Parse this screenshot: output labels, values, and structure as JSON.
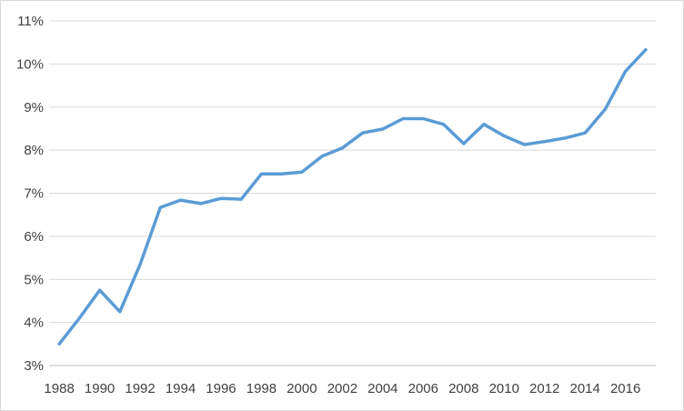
{
  "chart_data": {
    "type": "line",
    "x": [
      1988,
      1989,
      1990,
      1991,
      1992,
      1993,
      1994,
      1995,
      1996,
      1997,
      1998,
      1999,
      2000,
      2001,
      2002,
      2003,
      2004,
      2005,
      2006,
      2007,
      2008,
      2009,
      2010,
      2011,
      2012,
      2013,
      2014,
      2015,
      2016,
      2017
    ],
    "series": [
      {
        "values": [
          3.5,
          4.1,
          4.75,
          4.25,
          5.35,
          6.67,
          6.84,
          6.76,
          6.88,
          6.86,
          7.45,
          7.45,
          7.49,
          7.86,
          8.05,
          8.4,
          8.49,
          8.73,
          8.73,
          8.6,
          8.15,
          8.6,
          8.33,
          8.13,
          8.2,
          8.28,
          8.4,
          8.95,
          9.83,
          10.33
        ],
        "color": "#5b9bd5"
      }
    ],
    "x_tick_labels": [
      "1988",
      "1990",
      "1992",
      "1994",
      "1996",
      "1998",
      "2000",
      "2002",
      "2004",
      "2006",
      "2008",
      "2010",
      "2012",
      "2014",
      "2016"
    ],
    "y_tick_labels": [
      "3%",
      "4%",
      "5%",
      "6%",
      "7%",
      "8%",
      "9%",
      "10%",
      "11%"
    ],
    "ylim": [
      3,
      11
    ],
    "y_unit": "%",
    "grid": "horizontal",
    "legend": "none",
    "title": "",
    "xlabel": "",
    "ylabel": ""
  }
}
